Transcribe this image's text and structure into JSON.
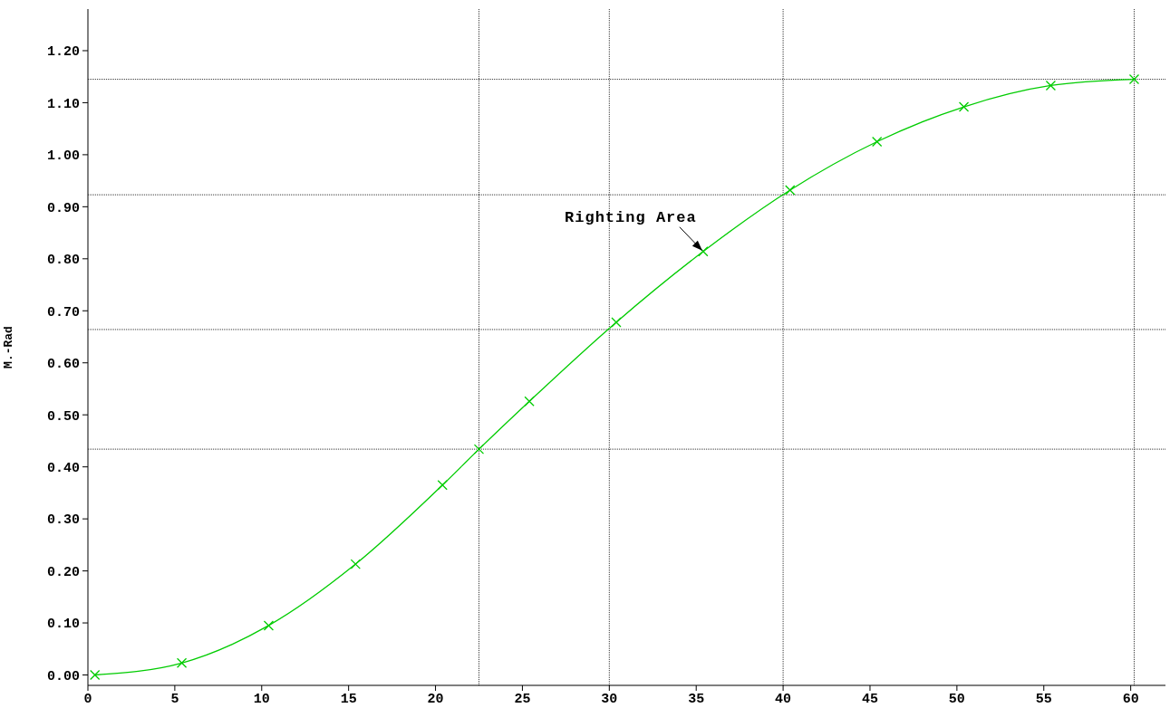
{
  "chart_data": {
    "type": "line",
    "ylabel": "M.-Rad",
    "series": [
      {
        "color": "#00cc00",
        "x": [
          0.4,
          5.4,
          10.4,
          15.4,
          20.4,
          22.5,
          25.4,
          30.4,
          35.4,
          40.4,
          45.4,
          50.4,
          55.4,
          60.2
        ],
        "values": [
          0.0,
          0.023,
          0.095,
          0.213,
          0.365,
          0.434,
          0.526,
          0.678,
          0.814,
          0.932,
          1.025,
          1.092,
          1.133,
          1.145
        ]
      }
    ],
    "marker": "cross",
    "line_style": "solid",
    "grid": false,
    "legend": false,
    "xlim": [
      0,
      62
    ],
    "xticks": [
      0,
      5,
      10,
      15,
      20,
      25,
      30,
      35,
      40,
      45,
      50,
      55,
      60
    ],
    "ylim": [
      -0.02,
      1.28
    ],
    "yticks": [
      {
        "value": 0,
        "label": "0.00"
      },
      {
        "value": 0.1,
        "label": "0.10"
      },
      {
        "value": 0.2,
        "label": "0.20"
      },
      {
        "value": 0.3,
        "label": "0.30"
      },
      {
        "value": 0.4,
        "label": "0.40"
      },
      {
        "value": 0.5,
        "label": "0.50"
      },
      {
        "value": 0.6,
        "label": "0.60"
      },
      {
        "value": 0.7,
        "label": "0.70"
      },
      {
        "value": 0.8,
        "label": "0.80"
      },
      {
        "value": 0.9,
        "label": "0.90"
      },
      {
        "value": 1.0,
        "label": "1.00"
      },
      {
        "value": 1.1,
        "label": "1.10"
      },
      {
        "value": 1.2,
        "label": "1.20"
      }
    ],
    "ref_lines": [
      {
        "axis": "x",
        "value": 22.5,
        "color": "#000000",
        "line_style": "dotted"
      },
      {
        "axis": "x",
        "value": 30,
        "color": "#000000",
        "line_style": "dotted"
      },
      {
        "axis": "x",
        "value": 40,
        "color": "#000000",
        "line_style": "dotted"
      },
      {
        "axis": "x",
        "value": 60.2,
        "color": "#000000",
        "line_style": "dotted"
      },
      {
        "axis": "y",
        "value": 1.145,
        "color": "#000000",
        "line_style": "dotted"
      },
      {
        "axis": "y",
        "value": 0.923,
        "color": "#000000",
        "line_style": "dotted"
      },
      {
        "axis": "y",
        "value": 0.664,
        "color": "#000000",
        "line_style": "dotted"
      },
      {
        "axis": "y",
        "value": 0.434,
        "color": "#000000",
        "line_style": "dotted"
      }
    ],
    "annotations": [
      {
        "text": "Righting Area",
        "x": 35.4,
        "y": 0.814
      }
    ]
  }
}
